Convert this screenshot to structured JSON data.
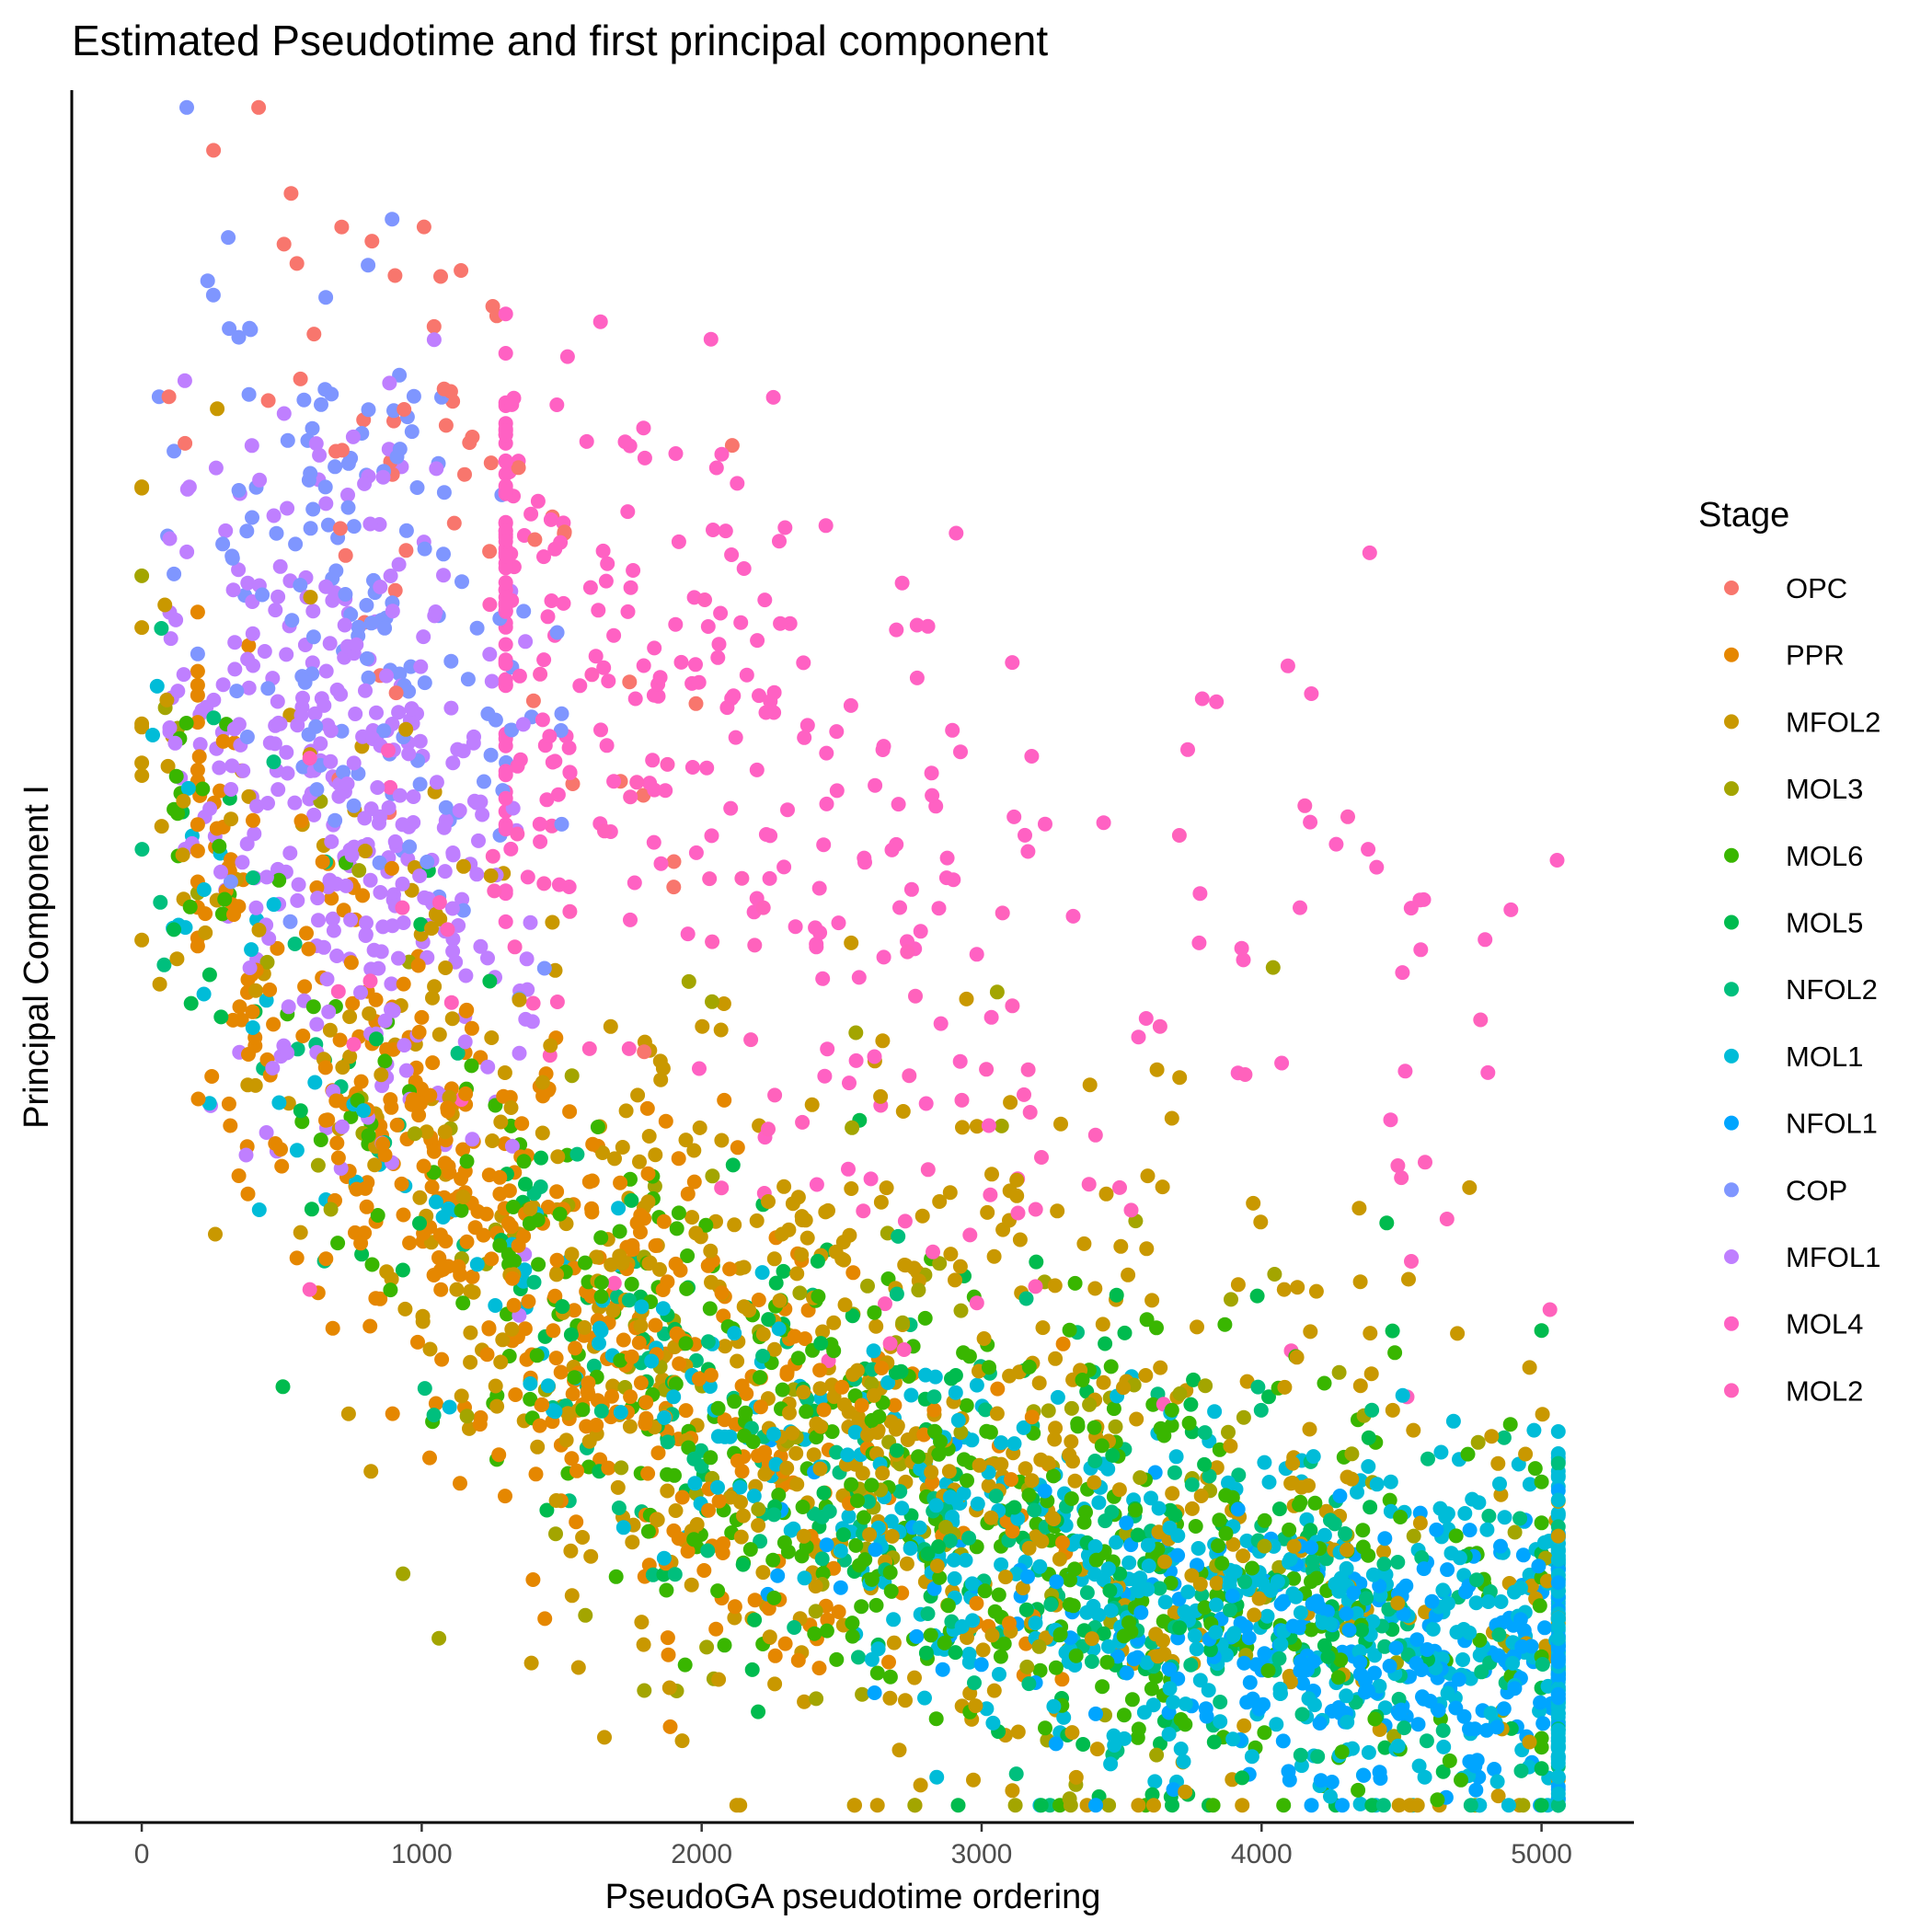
{
  "chart_data": {
    "type": "scatter",
    "title": "Estimated Pseudotime and first principal component",
    "xlabel": "PseudoGA pseudotime ordering",
    "ylabel": "Principal Component I",
    "xlim": [
      -250,
      5330
    ],
    "ylim": [
      0,
      100
    ],
    "x_ticks": [
      "0",
      "1000",
      "2000",
      "3000",
      "4000",
      "5000"
    ],
    "x_tick_values": [
      0,
      1000,
      2000,
      3000,
      4000,
      5000
    ],
    "y_ticks_shown": false,
    "grid": false,
    "legend": {
      "title": "Stage",
      "position": "right"
    },
    "series": [
      {
        "name": "OPC",
        "color": "#F8766D",
        "n": 60,
        "x_range": [
          30,
          2150
        ],
        "center_x": 1100,
        "y_center": 78,
        "y_spread": 10
      },
      {
        "name": "PPR",
        "color": "#E58700",
        "n": 500,
        "x_range": [
          200,
          3300
        ],
        "center_x": 1300,
        "y_center": 33,
        "y_spread": 7
      },
      {
        "name": "MFOL2",
        "color": "#C99800",
        "n": 650,
        "x_range": [
          0,
          5060
        ],
        "center_x": 2500,
        "y_center": 28,
        "y_spread": 10
      },
      {
        "name": "MOL3",
        "color": "#A3A500",
        "n": 150,
        "x_range": [
          0,
          5060
        ],
        "center_x": 2700,
        "y_center": 25,
        "y_spread": 10
      },
      {
        "name": "MOL6",
        "color": "#39B600",
        "n": 450,
        "x_range": [
          100,
          5000
        ],
        "center_x": 2900,
        "y_center": 18,
        "y_spread": 6
      },
      {
        "name": "MOL5",
        "color": "#00BB4E",
        "n": 200,
        "x_range": [
          0,
          5000
        ],
        "center_x": 3000,
        "y_center": 18,
        "y_spread": 8
      },
      {
        "name": "NFOL2",
        "color": "#00BF7D",
        "n": 250,
        "x_range": [
          0,
          5060
        ],
        "center_x": 3500,
        "y_center": 12,
        "y_spread": 6
      },
      {
        "name": "MOL1",
        "color": "#00BCD8",
        "n": 650,
        "x_range": [
          0,
          5060
        ],
        "center_x": 4300,
        "y_center": 10,
        "y_spread": 5
      },
      {
        "name": "NFOL1",
        "color": "#00A5FF",
        "n": 300,
        "x_range": [
          2200,
          5060
        ],
        "center_x": 4500,
        "y_center": 7,
        "y_spread": 4
      },
      {
        "name": "COP",
        "color": "#7F96FF",
        "n": 150,
        "x_range": [
          50,
          1500
        ],
        "center_x": 800,
        "y_center": 70,
        "y_spread": 9
      },
      {
        "name": "MFOL1",
        "color": "#BF7FFF",
        "n": 350,
        "x_range": [
          100,
          1400
        ],
        "center_x": 700,
        "y_center": 60,
        "y_spread": 9
      },
      {
        "name": "MOL4",
        "color": "#FF61C3",
        "n": 300,
        "x_range": [
          1300,
          5060
        ],
        "center_x": 1700,
        "y_center": 67,
        "y_spread": 8
      },
      {
        "name": "MOL2",
        "color": "#FF62BC",
        "n": 90,
        "x_range": [
          600,
          5060
        ],
        "center_x": 2400,
        "y_center": 45,
        "y_spread": 9
      }
    ]
  }
}
